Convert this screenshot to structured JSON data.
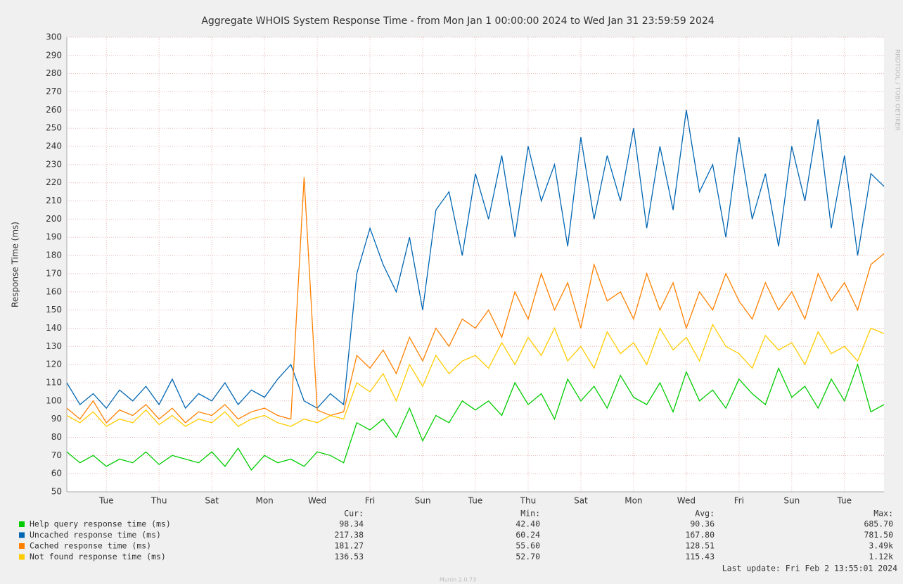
{
  "chart_data": {
    "type": "line",
    "title": "Aggregate WHOIS System Response Time - from Mon Jan  1 00:00:00 2024 to Wed Jan 31 23:59:59 2024",
    "y_label": "Response Time (ms)",
    "x": [
      0,
      0.5,
      1,
      1.5,
      2,
      2.5,
      3,
      3.5,
      4,
      4.5,
      5,
      5.5,
      6,
      6.5,
      7,
      7.5,
      8,
      8.5,
      9,
      9.5,
      10,
      10.5,
      11,
      11.5,
      12,
      12.5,
      13,
      13.5,
      14,
      14.5,
      15,
      15.5,
      16,
      16.5,
      17,
      17.5,
      18,
      18.5,
      19,
      19.5,
      20,
      20.5,
      21,
      21.5,
      22,
      22.5,
      23,
      23.5,
      24,
      24.5,
      25,
      25.5,
      26,
      26.5,
      27,
      27.5,
      28,
      28.5,
      29,
      29.5,
      30,
      30.5,
      31
    ],
    "xlim": [
      0,
      31
    ],
    "xticks": [
      {
        "value": 1.5,
        "label": "Tue"
      },
      {
        "value": 3.5,
        "label": "Thu"
      },
      {
        "value": 5.5,
        "label": "Sat"
      },
      {
        "value": 7.5,
        "label": "Mon"
      },
      {
        "value": 9.5,
        "label": "Wed"
      },
      {
        "value": 11.5,
        "label": "Fri"
      },
      {
        "value": 13.5,
        "label": "Sun"
      },
      {
        "value": 15.5,
        "label": "Tue"
      },
      {
        "value": 17.5,
        "label": "Thu"
      },
      {
        "value": 19.5,
        "label": "Sat"
      },
      {
        "value": 21.5,
        "label": "Mon"
      },
      {
        "value": 23.5,
        "label": "Wed"
      },
      {
        "value": 25.5,
        "label": "Fri"
      },
      {
        "value": 27.5,
        "label": "Sun"
      },
      {
        "value": 29.5,
        "label": "Tue"
      }
    ],
    "ylim": [
      50,
      300
    ],
    "yticks": [
      50,
      60,
      70,
      80,
      90,
      100,
      110,
      120,
      130,
      140,
      150,
      160,
      170,
      180,
      190,
      200,
      210,
      220,
      230,
      240,
      250,
      260,
      270,
      280,
      290,
      300
    ],
    "grid": true,
    "series": [
      {
        "name": "Help query response time (ms)",
        "color": "#00cc00",
        "values": [
          72,
          66,
          70,
          64,
          68,
          66,
          72,
          65,
          70,
          68,
          66,
          72,
          64,
          74,
          62,
          70,
          66,
          68,
          64,
          72,
          70,
          66,
          88,
          84,
          90,
          80,
          96,
          78,
          92,
          88,
          100,
          95,
          100,
          92,
          110,
          98,
          104,
          90,
          112,
          100,
          108,
          96,
          114,
          102,
          98,
          110,
          94,
          116,
          100,
          106,
          96,
          112,
          104,
          98,
          118,
          102,
          108,
          96,
          112,
          100,
          120,
          94,
          98
        ]
      },
      {
        "name": "Uncached response time (ms)",
        "color": "#0066b3",
        "values": [
          110,
          98,
          104,
          96,
          106,
          100,
          108,
          98,
          112,
          96,
          104,
          100,
          110,
          98,
          106,
          102,
          112,
          120,
          100,
          96,
          104,
          98,
          170,
          195,
          175,
          160,
          190,
          150,
          205,
          215,
          180,
          225,
          200,
          235,
          190,
          240,
          210,
          230,
          185,
          245,
          200,
          235,
          210,
          250,
          195,
          240,
          205,
          260,
          215,
          230,
          190,
          245,
          200,
          225,
          185,
          240,
          210,
          255,
          195,
          235,
          180,
          225,
          218
        ]
      },
      {
        "name": "Cached response time (ms)",
        "color": "#ff8000",
        "values": [
          96,
          90,
          100,
          88,
          95,
          92,
          98,
          90,
          96,
          88,
          94,
          92,
          98,
          90,
          94,
          96,
          92,
          90,
          223,
          95,
          92,
          94,
          125,
          118,
          128,
          115,
          135,
          122,
          140,
          130,
          145,
          140,
          150,
          135,
          160,
          145,
          170,
          150,
          165,
          140,
          175,
          155,
          160,
          145,
          170,
          150,
          165,
          140,
          160,
          150,
          170,
          155,
          145,
          165,
          150,
          160,
          145,
          170,
          155,
          165,
          150,
          175,
          181
        ]
      },
      {
        "name": "Not found response time (ms)",
        "color": "#ffcc00",
        "values": [
          92,
          88,
          94,
          86,
          90,
          88,
          95,
          87,
          92,
          86,
          90,
          88,
          94,
          86,
          90,
          92,
          88,
          86,
          90,
          88,
          92,
          90,
          110,
          105,
          115,
          100,
          120,
          108,
          125,
          115,
          122,
          125,
          118,
          132,
          120,
          135,
          125,
          140,
          122,
          130,
          118,
          138,
          126,
          132,
          120,
          140,
          128,
          135,
          122,
          142,
          130,
          126,
          118,
          136,
          128,
          132,
          120,
          138,
          126,
          130,
          122,
          140,
          137
        ]
      }
    ]
  },
  "legend_table": {
    "headers": [
      "Cur:",
      "Min:",
      "Avg:",
      "Max:"
    ],
    "rows": [
      [
        "98.34",
        "42.40",
        "90.36",
        "685.70"
      ],
      [
        "217.38",
        "60.24",
        "167.80",
        "781.50"
      ],
      [
        "181.27",
        "55.60",
        "128.51",
        "3.49k"
      ],
      [
        "136.53",
        "52.70",
        "115.43",
        "1.12k"
      ]
    ]
  },
  "last_update": "Last update: Fri Feb  2 13:55:01 2024",
  "footer": "Munin 2.0.73",
  "watermark": "RRDTOOL / TOBI OETIKER"
}
